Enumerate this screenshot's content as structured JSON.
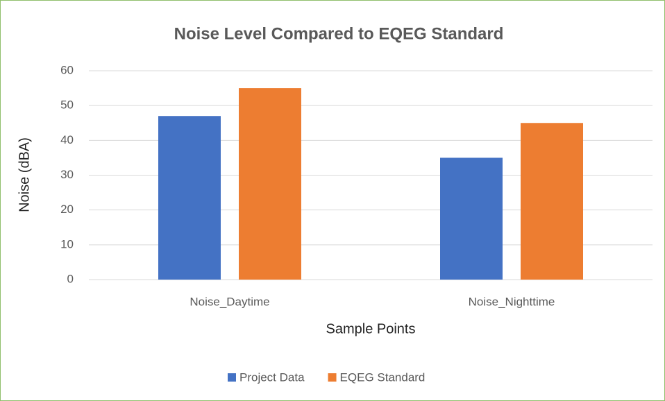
{
  "chart_data": {
    "type": "bar",
    "title": "Noise Level Compared to EQEG Standard",
    "xlabel": "Sample Points",
    "ylabel": "Noise (dBA)",
    "categories": [
      "Noise_Daytime",
      "Noise_Nighttime"
    ],
    "series": [
      {
        "name": "Project Data",
        "color": "#4472c4",
        "values": [
          47,
          35
        ]
      },
      {
        "name": "EQEG Standard",
        "color": "#ed7d31",
        "values": [
          55,
          45
        ]
      }
    ],
    "ylim": [
      0,
      60
    ],
    "yticks": [
      0,
      10,
      20,
      30,
      40,
      50,
      60
    ],
    "grid": true,
    "legend": "bottom"
  }
}
